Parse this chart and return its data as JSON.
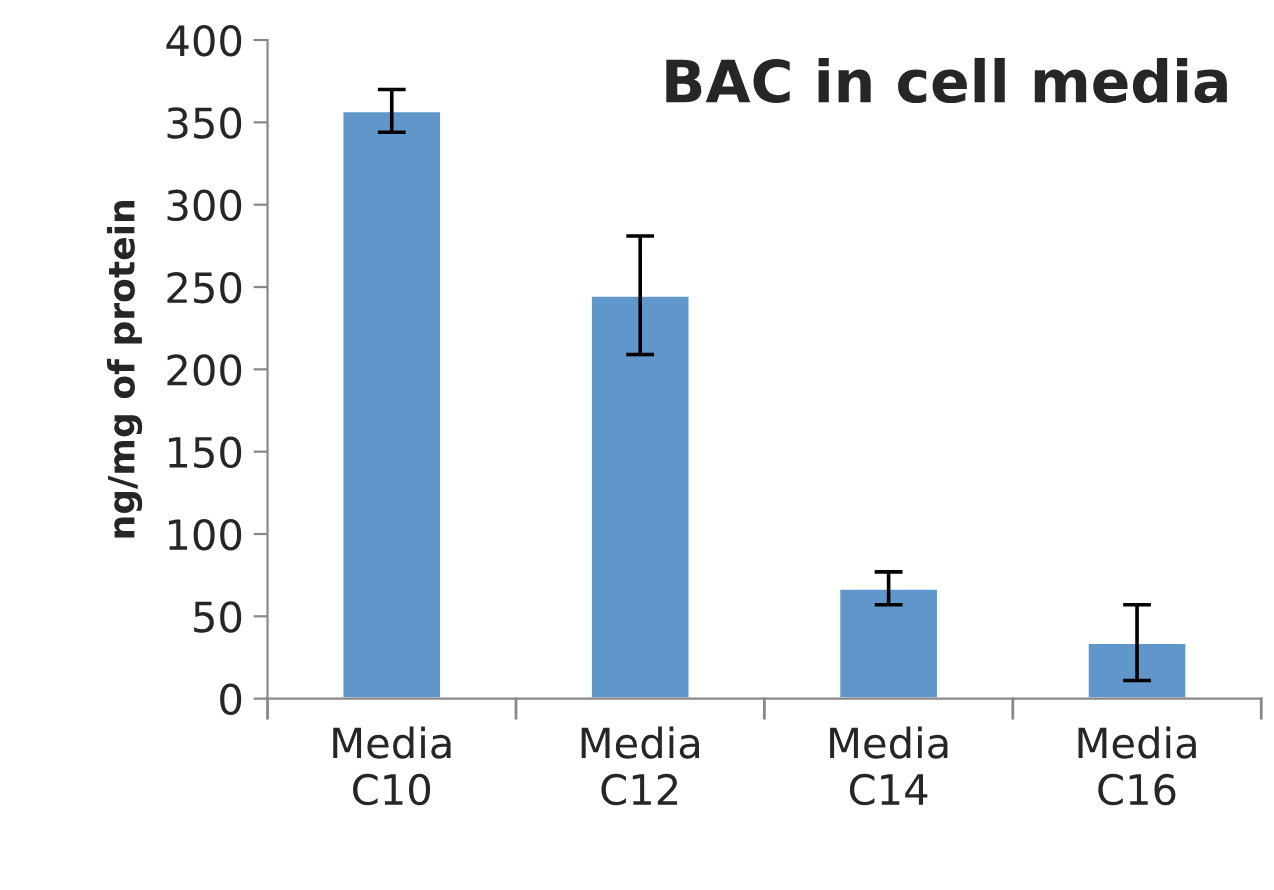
{
  "chart_data": {
    "type": "bar",
    "title": "BAC in cell media",
    "ylabel": "ng/mg of protein",
    "categories": [
      "Media\nC10",
      "Media\nC12",
      "Media\nC14",
      "Media\nC16"
    ],
    "values": [
      357,
      245,
      67,
      34
    ],
    "errors": [
      13,
      36,
      10,
      23
    ],
    "color": "#6096c9",
    "ylim": [
      0,
      400
    ],
    "yticks": [
      0,
      50,
      100,
      150,
      200,
      250,
      300,
      350,
      400
    ],
    "grid": false,
    "legend": false
  }
}
